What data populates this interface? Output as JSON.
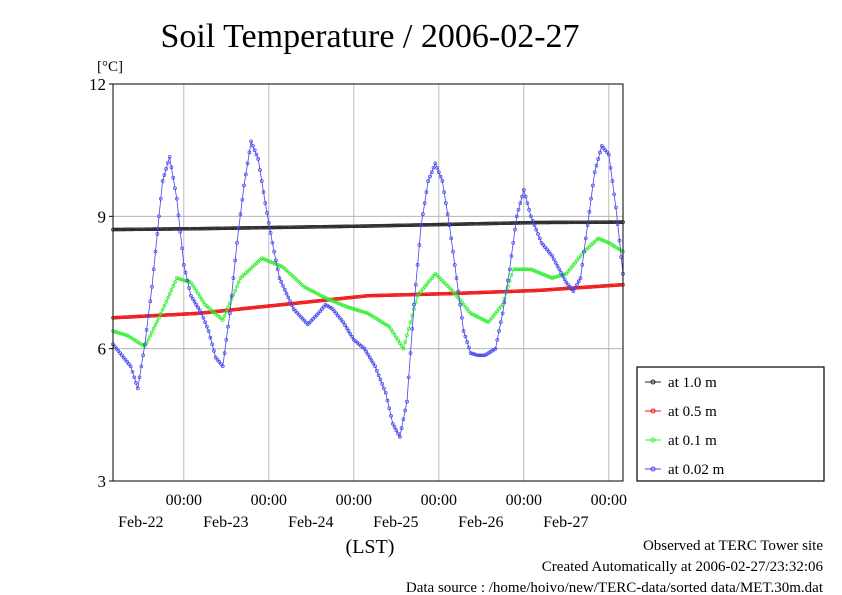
{
  "chart_data": {
    "type": "line",
    "title": "Soil Temperature / 2006-02-27",
    "ylabel": "[°C]",
    "xlabel": "(LST)",
    "ylim": [
      3,
      12
    ],
    "yticks": [
      3,
      6,
      9,
      12
    ],
    "xlim": [
      0,
      144
    ],
    "xtick_labels": [
      {
        "time": "00:00",
        "date": "Feb-22",
        "x": 20
      },
      {
        "time": "00:00",
        "date": "Feb-23",
        "x": 44
      },
      {
        "time": "00:00",
        "date": "Feb-24",
        "x": 68
      },
      {
        "time": "00:00",
        "date": "Feb-25",
        "x": 92
      },
      {
        "time": "00:00",
        "date": "Feb-26",
        "x": 116
      },
      {
        "time": "00:00",
        "date": "Feb-27",
        "x": 140
      }
    ],
    "grid": true,
    "legend_position": "right",
    "series": [
      {
        "name": "at 1.0 m",
        "color": "#222222",
        "points": [
          [
            0,
            8.7
          ],
          [
            24,
            8.72
          ],
          [
            48,
            8.75
          ],
          [
            72,
            8.78
          ],
          [
            96,
            8.82
          ],
          [
            120,
            8.86
          ],
          [
            144,
            8.87
          ]
        ]
      },
      {
        "name": "at 0.5 m",
        "color": "#ee1111",
        "points": [
          [
            0,
            6.7
          ],
          [
            24,
            6.8
          ],
          [
            48,
            7.0
          ],
          [
            72,
            7.2
          ],
          [
            96,
            7.25
          ],
          [
            120,
            7.32
          ],
          [
            144,
            7.45
          ]
        ]
      },
      {
        "name": "at 0.1 m",
        "color": "#33ee33",
        "points": [
          [
            0,
            6.4
          ],
          [
            4,
            6.3
          ],
          [
            9,
            6.05
          ],
          [
            13,
            6.7
          ],
          [
            18,
            7.6
          ],
          [
            22,
            7.5
          ],
          [
            26,
            7.0
          ],
          [
            31,
            6.65
          ],
          [
            36,
            7.6
          ],
          [
            42,
            8.05
          ],
          [
            48,
            7.85
          ],
          [
            54,
            7.4
          ],
          [
            60,
            7.15
          ],
          [
            66,
            6.95
          ],
          [
            72,
            6.8
          ],
          [
            78,
            6.5
          ],
          [
            82,
            6.0
          ],
          [
            86,
            7.2
          ],
          [
            91,
            7.7
          ],
          [
            96,
            7.3
          ],
          [
            101,
            6.8
          ],
          [
            106,
            6.6
          ],
          [
            110,
            7.0
          ],
          [
            113,
            7.8
          ],
          [
            118,
            7.8
          ],
          [
            124,
            7.6
          ],
          [
            128,
            7.7
          ],
          [
            133,
            8.2
          ],
          [
            137,
            8.5
          ],
          [
            140,
            8.4
          ],
          [
            144,
            8.2
          ]
        ]
      },
      {
        "name": "at 0.02 m",
        "color": "#4444ee",
        "points": [
          [
            0,
            6.1
          ],
          [
            3,
            5.8
          ],
          [
            5,
            5.6
          ],
          [
            7,
            5.1
          ],
          [
            9,
            6.1
          ],
          [
            11,
            7.4
          ],
          [
            13,
            9.0
          ],
          [
            14,
            9.8
          ],
          [
            16,
            10.35
          ],
          [
            18,
            9.4
          ],
          [
            20,
            7.9
          ],
          [
            22,
            7.2
          ],
          [
            25,
            6.8
          ],
          [
            27,
            6.4
          ],
          [
            29,
            5.8
          ],
          [
            31,
            5.6
          ],
          [
            33,
            6.8
          ],
          [
            35,
            8.4
          ],
          [
            37,
            9.7
          ],
          [
            39,
            10.7
          ],
          [
            41,
            10.3
          ],
          [
            43,
            9.3
          ],
          [
            45,
            8.4
          ],
          [
            47,
            7.6
          ],
          [
            51,
            6.9
          ],
          [
            55,
            6.55
          ],
          [
            58,
            6.8
          ],
          [
            60,
            7.0
          ],
          [
            62,
            6.9
          ],
          [
            65,
            6.6
          ],
          [
            68,
            6.2
          ],
          [
            71,
            6.0
          ],
          [
            74,
            5.6
          ],
          [
            77,
            5.0
          ],
          [
            79,
            4.3
          ],
          [
            81,
            4.0
          ],
          [
            83,
            4.8
          ],
          [
            85,
            7.0
          ],
          [
            87,
            8.8
          ],
          [
            89,
            9.8
          ],
          [
            91,
            10.2
          ],
          [
            93,
            9.8
          ],
          [
            95,
            8.8
          ],
          [
            97,
            7.6
          ],
          [
            99,
            6.4
          ],
          [
            101,
            5.9
          ],
          [
            103,
            5.85
          ],
          [
            105,
            5.85
          ],
          [
            108,
            6.0
          ],
          [
            110,
            6.8
          ],
          [
            112,
            7.8
          ],
          [
            114,
            9.0
          ],
          [
            116,
            9.6
          ],
          [
            118,
            9.0
          ],
          [
            121,
            8.4
          ],
          [
            124,
            8.1
          ],
          [
            126,
            7.8
          ],
          [
            128,
            7.5
          ],
          [
            130,
            7.3
          ],
          [
            132,
            7.6
          ],
          [
            134,
            8.8
          ],
          [
            136,
            10.0
          ],
          [
            138,
            10.6
          ],
          [
            140,
            10.4
          ],
          [
            142,
            9.2
          ],
          [
            144,
            7.7
          ]
        ]
      }
    ]
  },
  "footer": {
    "line1": "Observed at TERC Tower site",
    "line2": "Created Automatically at 2006-02-27/23:32:06",
    "line3": "Data source : /home/hoivo/new/TERC-data/sorted  data/MET.30m.dat"
  }
}
